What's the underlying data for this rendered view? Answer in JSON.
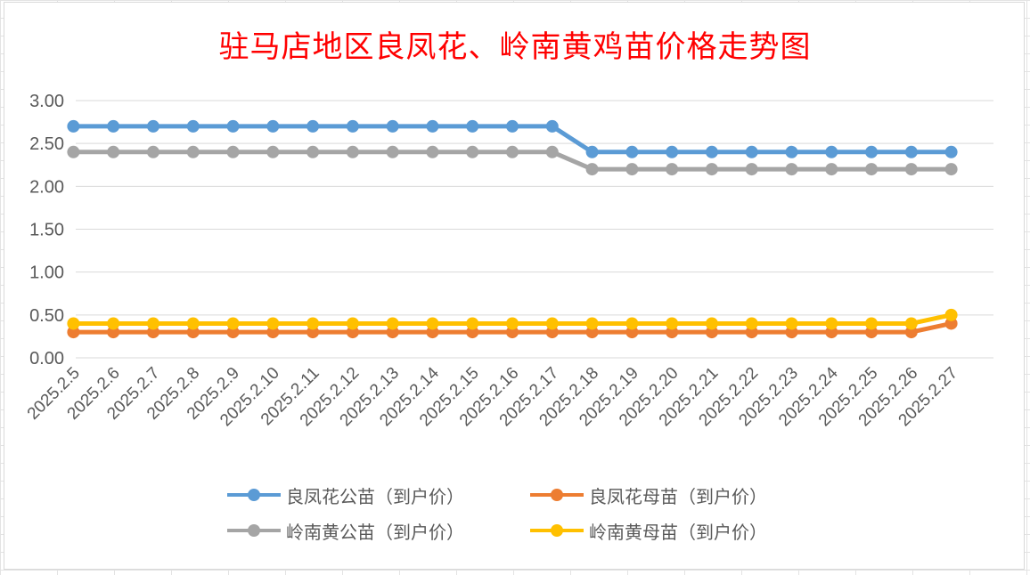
{
  "chart_data": {
    "type": "line",
    "title": "驻马店地区良凤花、岭南黄鸡苗价格走势图",
    "categories": [
      "2025.2.5",
      "2025.2.6",
      "2025.2.7",
      "2025.2.8",
      "2025.2.9",
      "2025.2.10",
      "2025.2.11",
      "2025.2.12",
      "2025.2.13",
      "2025.2.14",
      "2025.2.15",
      "2025.2.16",
      "2025.2.17",
      "2025.2.18",
      "2025.2.19",
      "2025.2.20",
      "2025.2.21",
      "2025.2.22",
      "2025.2.23",
      "2025.2.24",
      "2025.2.25",
      "2025.2.26",
      "2025.2.27"
    ],
    "ylim": [
      0,
      3
    ],
    "yticks": [
      "0.00",
      "0.50",
      "1.00",
      "1.50",
      "2.00",
      "2.50",
      "3.00"
    ],
    "grid": true,
    "legend_position": "bottom",
    "series": [
      {
        "name": "良凤花公苗（到户价）",
        "color": "#5b9bd5",
        "values": [
          2.7,
          2.7,
          2.7,
          2.7,
          2.7,
          2.7,
          2.7,
          2.7,
          2.7,
          2.7,
          2.7,
          2.7,
          2.7,
          2.4,
          2.4,
          2.4,
          2.4,
          2.4,
          2.4,
          2.4,
          2.4,
          2.4,
          2.4
        ]
      },
      {
        "name": "良凤花母苗（到户价）",
        "color": "#ed7d31",
        "values": [
          0.3,
          0.3,
          0.3,
          0.3,
          0.3,
          0.3,
          0.3,
          0.3,
          0.3,
          0.3,
          0.3,
          0.3,
          0.3,
          0.3,
          0.3,
          0.3,
          0.3,
          0.3,
          0.3,
          0.3,
          0.3,
          0.3,
          0.4
        ]
      },
      {
        "name": "岭南黄公苗（到户价）",
        "color": "#a5a5a5",
        "values": [
          2.4,
          2.4,
          2.4,
          2.4,
          2.4,
          2.4,
          2.4,
          2.4,
          2.4,
          2.4,
          2.4,
          2.4,
          2.4,
          2.2,
          2.2,
          2.2,
          2.2,
          2.2,
          2.2,
          2.2,
          2.2,
          2.2,
          2.2
        ]
      },
      {
        "name": "岭南黄母苗（到户价）",
        "color": "#ffc000",
        "values": [
          0.4,
          0.4,
          0.4,
          0.4,
          0.4,
          0.4,
          0.4,
          0.4,
          0.4,
          0.4,
          0.4,
          0.4,
          0.4,
          0.4,
          0.4,
          0.4,
          0.4,
          0.4,
          0.4,
          0.4,
          0.4,
          0.4,
          0.5
        ]
      }
    ]
  }
}
